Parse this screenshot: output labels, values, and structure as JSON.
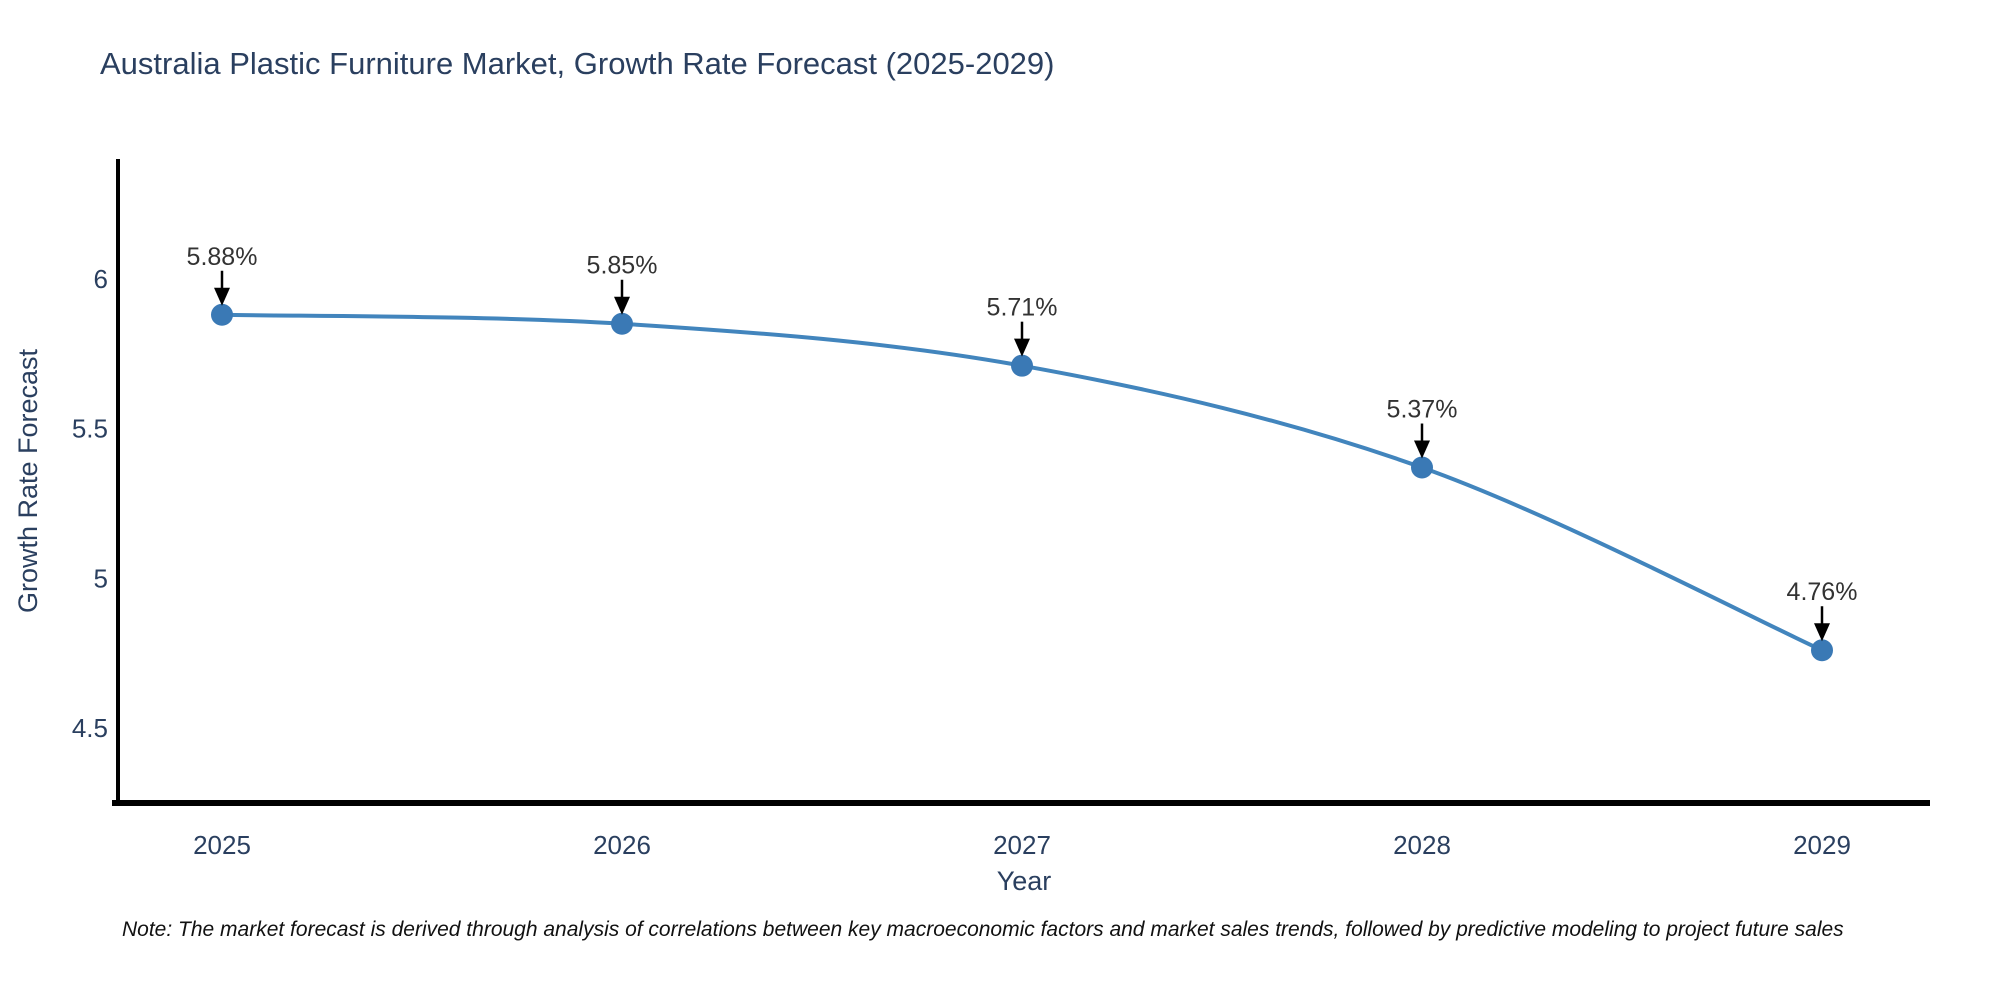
{
  "title": "Australia Plastic Furniture Market, Growth Rate Forecast (2025-2029)",
  "note": "Note: The market forecast is derived through analysis of correlations between key macroeconomic factors and market sales trends, followed by predictive modeling to project future sales",
  "chart_data": {
    "type": "line",
    "title": "Australia Plastic Furniture Market, Growth Rate Forecast (2025-2029)",
    "x": [
      "2025",
      "2026",
      "2027",
      "2028",
      "2029"
    ],
    "values": [
      5.88,
      5.85,
      5.71,
      5.37,
      4.76
    ],
    "point_labels": [
      "5.88%",
      "5.85%",
      "5.71%",
      "5.37%",
      "4.76%"
    ],
    "xlabel": "Year",
    "ylabel": "Growth Rate Forecast",
    "yticks": [
      "6",
      "5.5",
      "5",
      "4.5"
    ],
    "ytick_values": [
      6,
      5.5,
      5,
      4.5
    ],
    "ylim": [
      4.25,
      6.4
    ],
    "grid": false,
    "legend": "none",
    "line_shape": "spline",
    "line_color": "#4285bd",
    "marker_color": "#3a79b5",
    "axis_color": "#000000",
    "text_color": "#2a3f5f",
    "annotation_text_color": "#333333",
    "annotation_arrow_color": "#000000"
  }
}
